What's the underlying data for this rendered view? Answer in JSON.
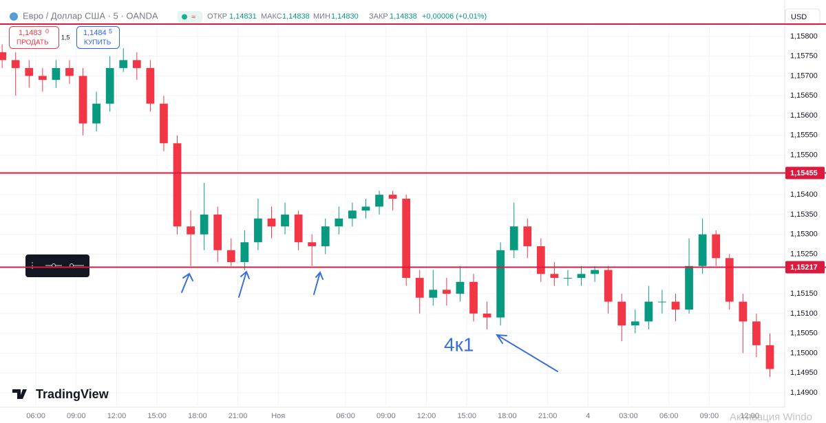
{
  "header": {
    "symbol": "Евро / Доллар США · 5 · OANDA",
    "open_label": "ОТКР",
    "open": "1,14831",
    "high_label": "МАКС",
    "high": "1,14838",
    "low_label": "МИН",
    "low": "1,14830",
    "close_label": "ЗАКР",
    "close": "1,14838",
    "change": "+0,00006 (+0,01%)",
    "currency": "USD"
  },
  "trade": {
    "sell_price": "1,1483",
    "sell_pip": "0",
    "sell_label": "ПРОДАТЬ",
    "spread": "1,5",
    "buy_price": "1,1484",
    "buy_pip": "5",
    "buy_label": "КУПИТЬ"
  },
  "annotation": "4к1",
  "brand": "TradingView",
  "watermark": "Активация Windo",
  "chart_data": {
    "type": "candlestick",
    "up_color": "#089981",
    "down_color": "#f23645",
    "level_color": "#d81b3f",
    "grid": true,
    "xlim": [
      -2.66,
      55.6
    ],
    "ylim": [
      1.14867,
      1.15831
    ],
    "xticks": [
      {
        "value": 0,
        "label": "06:00"
      },
      {
        "value": 3,
        "label": "09:00"
      },
      {
        "value": 6,
        "label": "12:00"
      },
      {
        "value": 9,
        "label": "15:00"
      },
      {
        "value": 12,
        "label": "18:00"
      },
      {
        "value": 15,
        "label": "21:00"
      },
      {
        "value": 18,
        "label": "Ноя"
      },
      {
        "value": 23,
        "label": "06:00"
      },
      {
        "value": 26,
        "label": "09:00"
      },
      {
        "value": 29,
        "label": "12:00"
      },
      {
        "value": 32,
        "label": "15:00"
      },
      {
        "value": 35,
        "label": "18:00"
      },
      {
        "value": 38,
        "label": "21:00"
      },
      {
        "value": 41,
        "label": "4"
      },
      {
        "value": 44,
        "label": "03:00"
      },
      {
        "value": 47,
        "label": "06:00"
      },
      {
        "value": 50,
        "label": "09:00"
      },
      {
        "value": 53,
        "label": "12:00"
      }
    ],
    "yticks": [
      {
        "value": 1.158,
        "label": "1,15800"
      },
      {
        "value": 1.1575,
        "label": "1,15750"
      },
      {
        "value": 1.157,
        "label": "1,15700"
      },
      {
        "value": 1.1565,
        "label": "1,15650"
      },
      {
        "value": 1.156,
        "label": "1,15600"
      },
      {
        "value": 1.1555,
        "label": "1,15550"
      },
      {
        "value": 1.155,
        "label": "1,15500"
      },
      {
        "value": 1.154,
        "label": "1,15400"
      },
      {
        "value": 1.1535,
        "label": "1,15350"
      },
      {
        "value": 1.153,
        "label": "1,15300"
      },
      {
        "value": 1.1525,
        "label": "1,15250"
      },
      {
        "value": 1.1515,
        "label": "1,15150"
      },
      {
        "value": 1.151,
        "label": "1,15100"
      },
      {
        "value": 1.1505,
        "label": "1,15050"
      },
      {
        "value": 1.15,
        "label": "1,15000"
      },
      {
        "value": 1.1495,
        "label": "1,14950"
      },
      {
        "value": 1.149,
        "label": "1,14900"
      }
    ],
    "levels": [
      1.15831,
      {
        "value": 1.15455,
        "label": "1,15455"
      },
      {
        "value": 1.15217,
        "label": "1,15217"
      }
    ],
    "x": [
      -2.5,
      -1.5,
      -0.5,
      0.5,
      1.5,
      2.5,
      3.5,
      4.5,
      5.5,
      6.5,
      7.5,
      8.5,
      9.5,
      10.5,
      11.5,
      12.5,
      13.5,
      14.5,
      15.5,
      16.5,
      17.5,
      18.5,
      19.5,
      20.5,
      21.5,
      22.5,
      23.5,
      24.5,
      25.5,
      26.5,
      27.5,
      28.5,
      29.5,
      30.5,
      31.5,
      32.5,
      33.5,
      34.5,
      35.5,
      36.5,
      37.5,
      38.5,
      39.5,
      40.5,
      41.5,
      42.5,
      43.5,
      44.5,
      45.5,
      46.5,
      47.5,
      48.5,
      49.5,
      50.5,
      51.5,
      52.5,
      53.5,
      54.5
    ],
    "open": [
      1.1576,
      1.1574,
      1.1572,
      1.157,
      1.1569,
      1.1572,
      1.157,
      1.1558,
      1.1563,
      1.1572,
      1.1574,
      1.1572,
      1.1563,
      1.1553,
      1.1532,
      1.153,
      1.1535,
      1.1526,
      1.1523,
      1.1528,
      1.1534,
      1.1532,
      1.1535,
      1.1528,
      1.1527,
      1.1532,
      1.1534,
      1.1536,
      1.1537,
      1.154,
      1.1539,
      1.1519,
      1.1514,
      1.1516,
      1.1515,
      1.1518,
      1.151,
      1.1509,
      1.1526,
      1.1532,
      1.1527,
      1.152,
      1.1519,
      1.1519,
      1.152,
      1.1521,
      1.1513,
      1.1507,
      1.1508,
      1.1513,
      1.1513,
      1.1511,
      1.1522,
      1.153,
      1.1524,
      1.1513,
      1.1508,
      1.1502
    ],
    "high": [
      1.1578,
      1.1576,
      1.1574,
      1.1572,
      1.1574,
      1.1574,
      1.1572,
      1.1566,
      1.1575,
      1.1577,
      1.1576,
      1.1574,
      1.1565,
      1.1555,
      1.1536,
      1.1543,
      1.1537,
      1.1529,
      1.1531,
      1.1539,
      1.1537,
      1.1538,
      1.1536,
      1.153,
      1.1534,
      1.1537,
      1.1538,
      1.1539,
      1.1541,
      1.1541,
      1.154,
      1.1521,
      1.1521,
      1.1519,
      1.1522,
      1.152,
      1.1513,
      1.1528,
      1.1538,
      1.1534,
      1.1529,
      1.1523,
      1.1521,
      1.1522,
      1.1522,
      1.1522,
      1.1515,
      1.1511,
      1.1517,
      1.1516,
      1.1515,
      1.1529,
      1.1534,
      1.1531,
      1.1525,
      1.1515,
      1.151,
      1.1505
    ],
    "low": [
      1.1572,
      1.1565,
      1.1567,
      1.1566,
      1.1567,
      1.1568,
      1.1555,
      1.1556,
      1.1561,
      1.1571,
      1.1569,
      1.1561,
      1.1551,
      1.153,
      1.1522,
      1.1526,
      1.1523,
      1.1522,
      1.1521,
      1.1526,
      1.1529,
      1.153,
      1.1526,
      1.1522,
      1.1525,
      1.153,
      1.1532,
      1.1534,
      1.1535,
      1.1536,
      1.1517,
      1.151,
      1.1512,
      1.1512,
      1.1513,
      1.1508,
      1.1506,
      1.1507,
      1.1524,
      1.1524,
      1.1518,
      1.1517,
      1.1517,
      1.1517,
      1.1518,
      1.151,
      1.1503,
      1.1505,
      1.1506,
      1.151,
      1.1508,
      1.151,
      1.152,
      1.1522,
      1.1511,
      1.15,
      1.1499,
      1.1494
    ],
    "close": [
      1.1574,
      1.1572,
      1.157,
      1.1569,
      1.1572,
      1.157,
      1.1558,
      1.1563,
      1.1572,
      1.1574,
      1.1572,
      1.1563,
      1.1553,
      1.1532,
      1.153,
      1.1535,
      1.1526,
      1.1523,
      1.1528,
      1.1534,
      1.1532,
      1.1535,
      1.1528,
      1.1527,
      1.1532,
      1.1534,
      1.1536,
      1.1537,
      1.154,
      1.1539,
      1.1519,
      1.1514,
      1.1516,
      1.1515,
      1.1518,
      1.151,
      1.1509,
      1.1526,
      1.1532,
      1.1527,
      1.152,
      1.1519,
      1.1519,
      1.152,
      1.1521,
      1.1513,
      1.1507,
      1.1508,
      1.1513,
      1.1513,
      1.1511,
      1.1522,
      1.153,
      1.1524,
      1.1513,
      1.1508,
      1.1502,
      1.1496
    ]
  }
}
